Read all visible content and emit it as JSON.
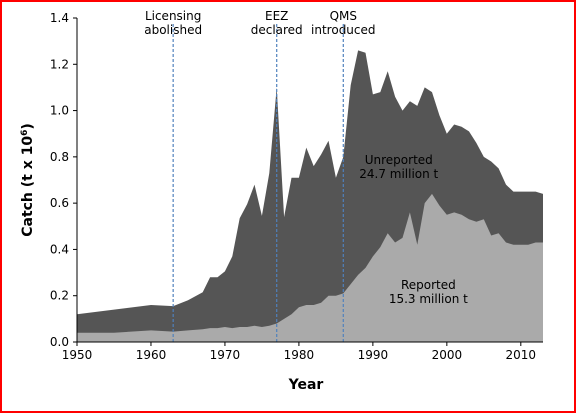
{
  "colors": {
    "frame": "#ff0000",
    "unreported_fill": "#555555",
    "reported_fill": "#aaaaaa",
    "event_line": "#4f81bd"
  },
  "chart_data": {
    "type": "area",
    "xlabel": "Year",
    "ylabel": "Catch (t x 10⁶)",
    "ylabel_parts": {
      "main": "Catch (t x 10",
      "sup": "6",
      "tail": ")"
    },
    "xlim": [
      1950,
      2013
    ],
    "ylim": [
      0,
      1.4
    ],
    "x_ticks": [
      1950,
      1960,
      1970,
      1980,
      1990,
      2000,
      2010
    ],
    "y_ticks": [
      "0.0",
      "0.2",
      "0.4",
      "0.6",
      "0.8",
      "1.0",
      "1.2",
      "1.4"
    ],
    "stacked": true,
    "x": [
      1950,
      1955,
      1960,
      1963,
      1965,
      1967,
      1968,
      1969,
      1970,
      1971,
      1972,
      1973,
      1974,
      1975,
      1976,
      1977,
      1978,
      1979,
      1980,
      1981,
      1982,
      1983,
      1984,
      1985,
      1986,
      1987,
      1988,
      1989,
      1990,
      1991,
      1992,
      1993,
      1994,
      1995,
      1996,
      1997,
      1998,
      1999,
      2000,
      2001,
      2002,
      2003,
      2004,
      2005,
      2006,
      2007,
      2008,
      2009,
      2010,
      2011,
      2012,
      2013
    ],
    "series": [
      {
        "name": "Reported",
        "values": [
          0.04,
          0.04,
          0.05,
          0.045,
          0.05,
          0.055,
          0.06,
          0.06,
          0.065,
          0.06,
          0.065,
          0.065,
          0.07,
          0.065,
          0.07,
          0.08,
          0.1,
          0.12,
          0.15,
          0.16,
          0.16,
          0.17,
          0.2,
          0.2,
          0.21,
          0.25,
          0.29,
          0.32,
          0.37,
          0.41,
          0.47,
          0.43,
          0.45,
          0.56,
          0.42,
          0.6,
          0.64,
          0.59,
          0.55,
          0.56,
          0.55,
          0.53,
          0.52,
          0.53,
          0.46,
          0.47,
          0.43,
          0.42,
          0.42,
          0.42,
          0.43,
          0.43
        ]
      },
      {
        "name": "Unreported",
        "values": [
          0.08,
          0.1,
          0.11,
          0.11,
          0.13,
          0.16,
          0.22,
          0.22,
          0.24,
          0.31,
          0.47,
          0.53,
          0.61,
          0.48,
          0.66,
          1.02,
          0.44,
          0.59,
          0.56,
          0.68,
          0.6,
          0.64,
          0.67,
          0.51,
          0.59,
          0.86,
          0.97,
          0.93,
          0.7,
          0.67,
          0.7,
          0.63,
          0.55,
          0.48,
          0.6,
          0.5,
          0.44,
          0.39,
          0.35,
          0.38,
          0.38,
          0.38,
          0.34,
          0.27,
          0.32,
          0.28,
          0.25,
          0.23,
          0.23,
          0.23,
          0.22,
          0.21
        ]
      }
    ],
    "events": [
      {
        "year": 1963,
        "label_lines": [
          "Licensing",
          "abolished"
        ]
      },
      {
        "year": 1977,
        "label_lines": [
          "EEZ",
          "declared"
        ]
      },
      {
        "year": 1986,
        "label_lines": [
          "QMS",
          "introduced"
        ]
      }
    ],
    "annotations": [
      {
        "lines": [
          "Unreported",
          "24.7 million t"
        ],
        "anchor_x": 1993.5,
        "anchor_y": 0.77
      },
      {
        "lines": [
          "Reported",
          "15.3 million t"
        ],
        "anchor_x": 1997.5,
        "anchor_y": 0.23
      }
    ],
    "grid": false,
    "legend": "none"
  }
}
